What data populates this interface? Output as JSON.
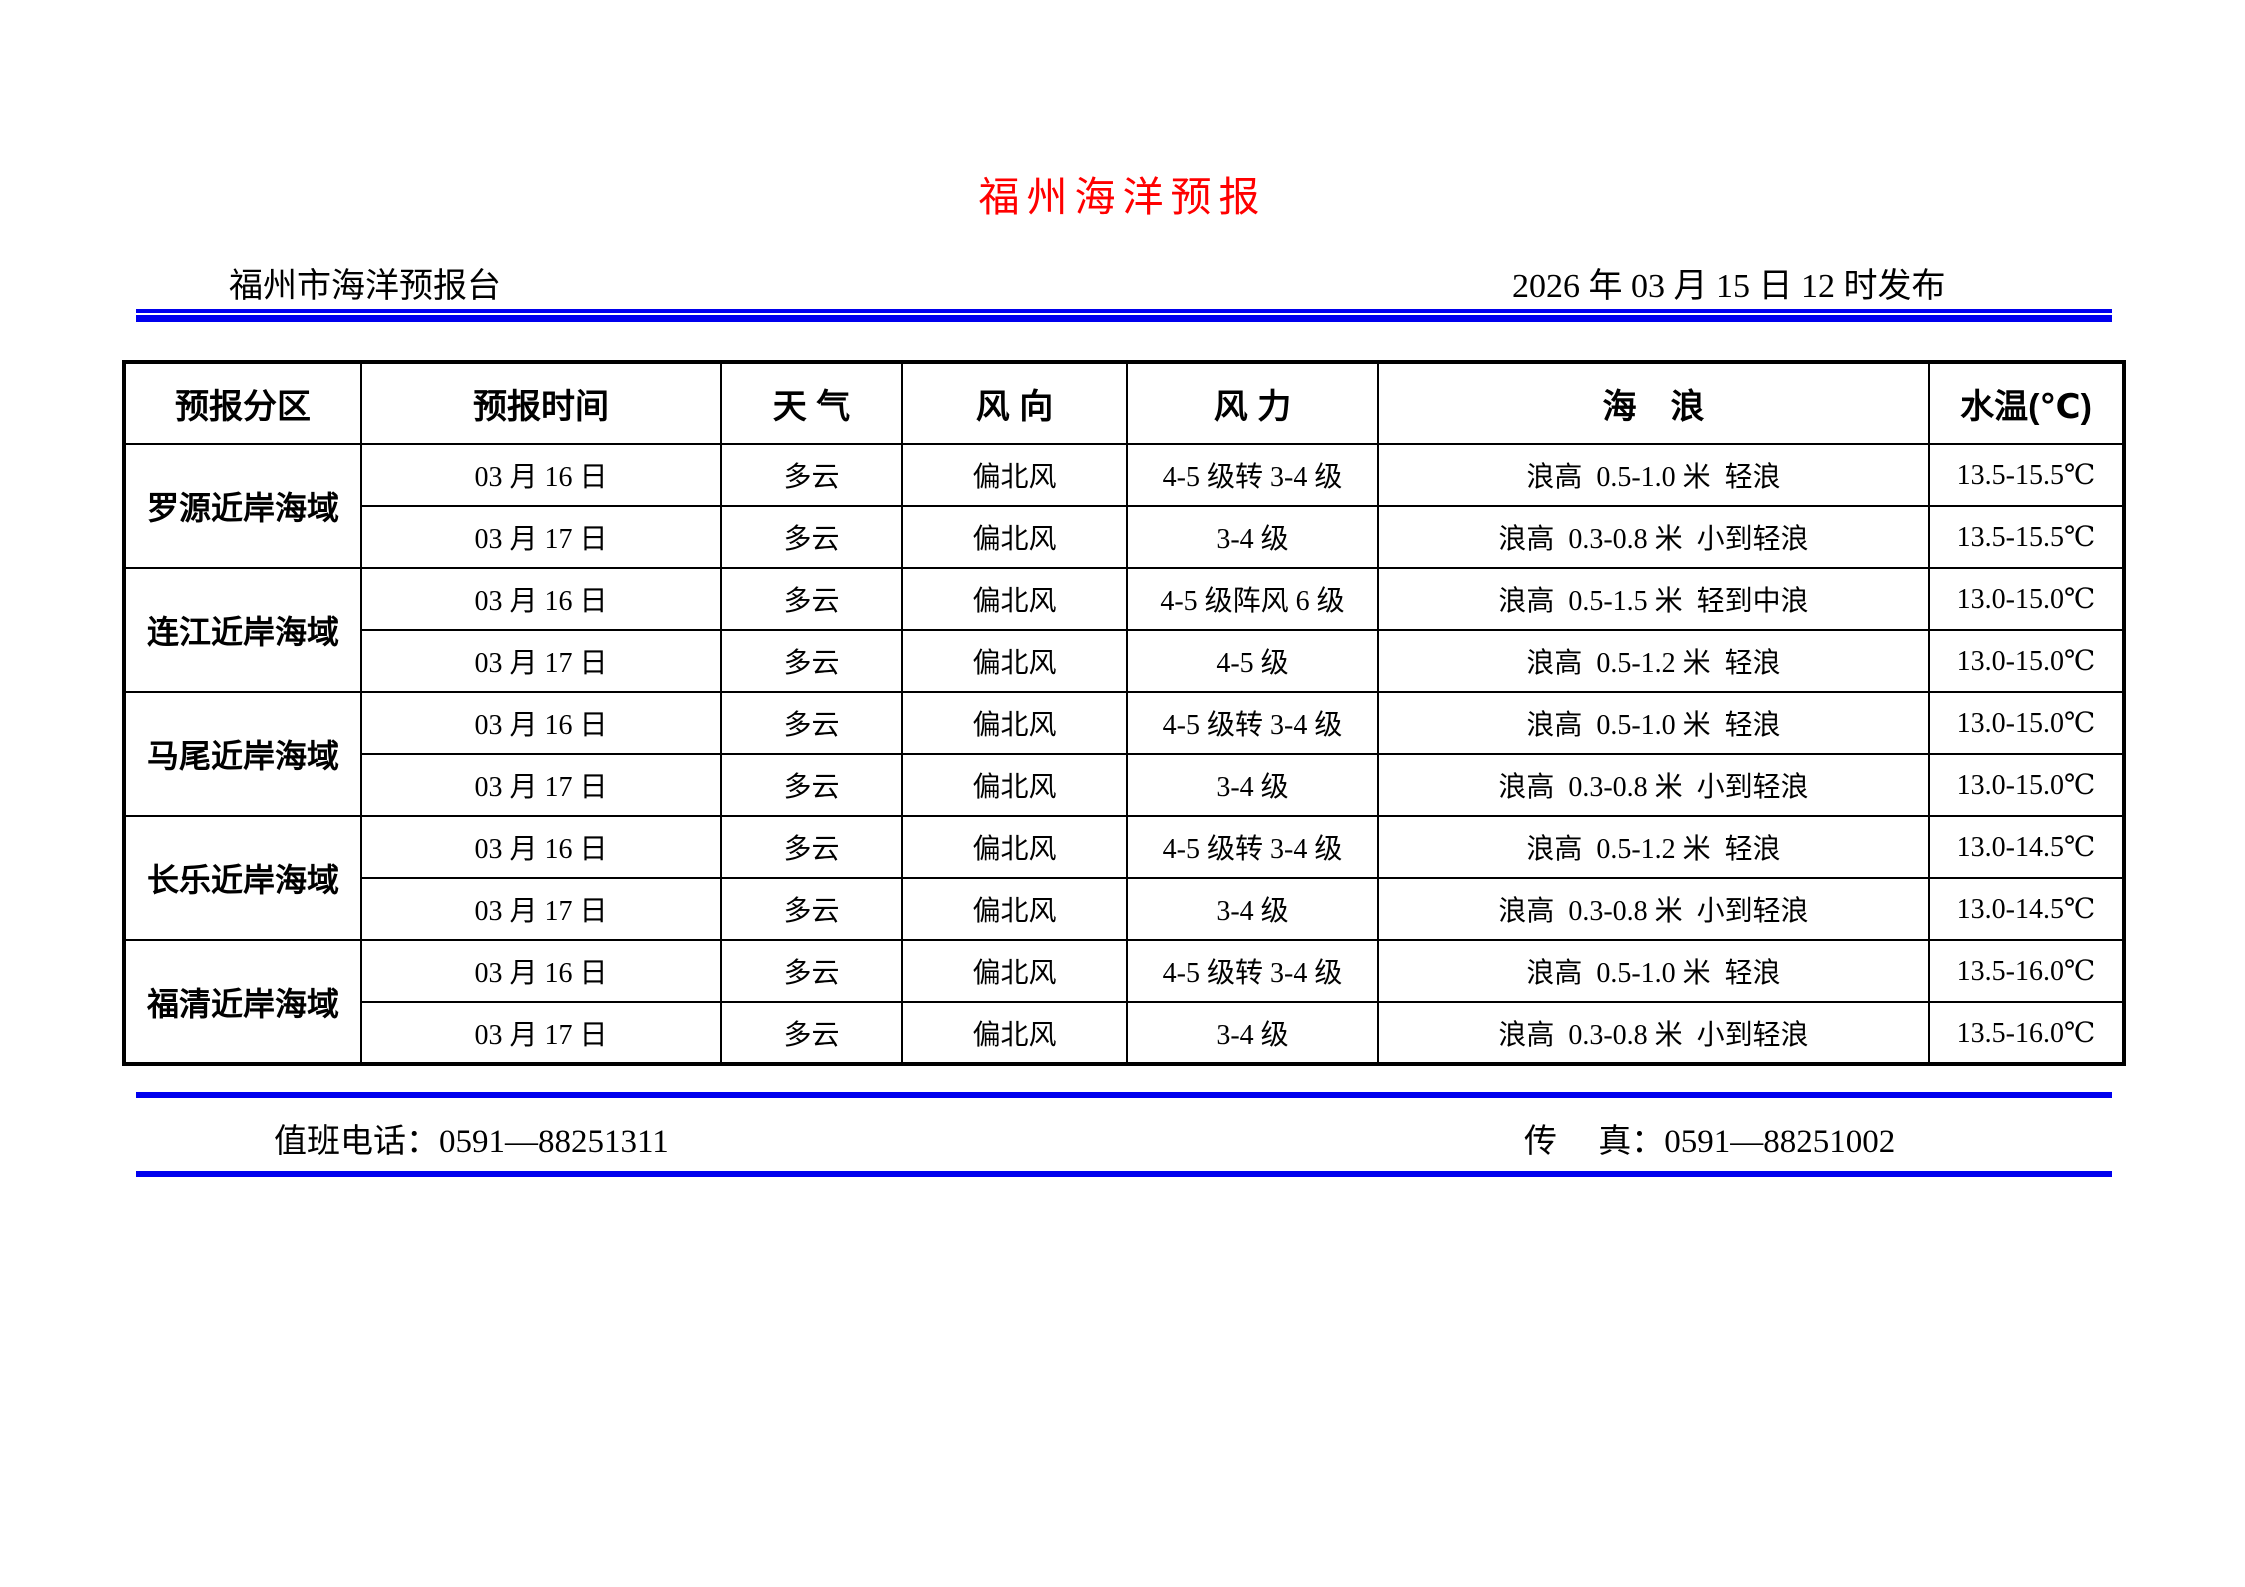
{
  "title": "福州海洋预报",
  "masthead": {
    "station": "福州市海洋预报台",
    "issued": "2026 年 03 月 15 日 12 时发布"
  },
  "colors": {
    "title_red": "#ff0000",
    "rule_blue": "#0000ee",
    "border_black": "#000000"
  },
  "table": {
    "columns": [
      "预报分区",
      "预报时间",
      "天 气",
      "风 向",
      "风 力",
      "海　浪",
      "水温(℃)"
    ],
    "groups": [
      {
        "area": "罗源近岸海域",
        "rows": [
          {
            "date": "03 月 16 日",
            "weather": "多云",
            "wind_dir": "偏北风",
            "wind_force": "4-5 级转 3-4 级",
            "wave": "浪高  0.5-1.0 米  轻浪",
            "temp": "13.5-15.5℃"
          },
          {
            "date": "03 月 17 日",
            "weather": "多云",
            "wind_dir": "偏北风",
            "wind_force": "3-4 级",
            "wave": "浪高  0.3-0.8 米  小到轻浪",
            "temp": "13.5-15.5℃"
          }
        ]
      },
      {
        "area": "连江近岸海域",
        "rows": [
          {
            "date": "03 月 16 日",
            "weather": "多云",
            "wind_dir": "偏北风",
            "wind_force": "4-5 级阵风 6 级",
            "wave": "浪高  0.5-1.5 米  轻到中浪",
            "temp": "13.0-15.0℃"
          },
          {
            "date": "03 月 17 日",
            "weather": "多云",
            "wind_dir": "偏北风",
            "wind_force": "4-5 级",
            "wave": "浪高  0.5-1.2 米  轻浪",
            "temp": "13.0-15.0℃"
          }
        ]
      },
      {
        "area": "马尾近岸海域",
        "rows": [
          {
            "date": "03 月 16 日",
            "weather": "多云",
            "wind_dir": "偏北风",
            "wind_force": "4-5 级转 3-4 级",
            "wave": "浪高  0.5-1.0 米  轻浪",
            "temp": "13.0-15.0℃"
          },
          {
            "date": "03 月 17 日",
            "weather": "多云",
            "wind_dir": "偏北风",
            "wind_force": "3-4 级",
            "wave": "浪高  0.3-0.8 米  小到轻浪",
            "temp": "13.0-15.0℃"
          }
        ]
      },
      {
        "area": "长乐近岸海域",
        "rows": [
          {
            "date": "03 月 16 日",
            "weather": "多云",
            "wind_dir": "偏北风",
            "wind_force": "4-5 级转 3-4 级",
            "wave": "浪高  0.5-1.2 米  轻浪",
            "temp": "13.0-14.5℃"
          },
          {
            "date": "03 月 17 日",
            "weather": "多云",
            "wind_dir": "偏北风",
            "wind_force": "3-4 级",
            "wave": "浪高  0.3-0.8 米  小到轻浪",
            "temp": "13.0-14.5℃"
          }
        ]
      },
      {
        "area": "福清近岸海域",
        "rows": [
          {
            "date": "03 月 16 日",
            "weather": "多云",
            "wind_dir": "偏北风",
            "wind_force": "4-5 级转 3-4 级",
            "wave": "浪高  0.5-1.0 米  轻浪",
            "temp": "13.5-16.0℃"
          },
          {
            "date": "03 月 17 日",
            "weather": "多云",
            "wind_dir": "偏北风",
            "wind_force": "3-4 级",
            "wave": "浪高  0.3-0.8 米  小到轻浪",
            "temp": "13.5-16.0℃"
          }
        ]
      }
    ]
  },
  "footer": {
    "duty_phone": "值班电话：0591—88251311",
    "fax": "传     真：0591—88251002"
  }
}
